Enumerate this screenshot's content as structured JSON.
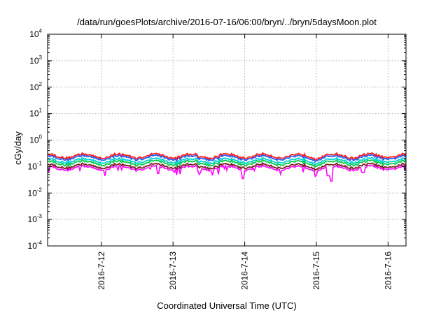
{
  "chart_data": {
    "type": "line",
    "title": "/data/run/goesPlots/archive/2016-07-16/06:00/bryn/../bryn/5daysMoon.plot",
    "xlabel": "Coordinated Universal Time (UTC)",
    "ylabel": "cGy/day",
    "yscale": "log",
    "ylim": [
      0.0001,
      10000
    ],
    "xlim": [
      "2016-07-11 06:00",
      "2016-07-16 06:00"
    ],
    "grid": true,
    "x_ticks": [
      "2016-7-12",
      "2016-7-13",
      "2016-7-14",
      "2016-7-15",
      "2016-7-16"
    ],
    "y_ticks": [
      {
        "base": "10",
        "exp": "-4",
        "value": 0.0001
      },
      {
        "base": "10",
        "exp": "-3",
        "value": 0.001
      },
      {
        "base": "10",
        "exp": "-2",
        "value": 0.01
      },
      {
        "base": "10",
        "exp": "-1",
        "value": 0.1
      },
      {
        "base": "10",
        "exp": "0",
        "value": 1
      },
      {
        "base": "10",
        "exp": "1",
        "value": 10
      },
      {
        "base": "10",
        "exp": "2",
        "value": 100
      },
      {
        "base": "10",
        "exp": "3",
        "value": 1000
      },
      {
        "base": "10",
        "exp": "4",
        "value": 10000
      }
    ],
    "series": [
      {
        "color": "#ff00ff",
        "level": 0.105,
        "dips": [
          [
            1.54,
            0.055
          ],
          [
            2.72,
            0.035
          ],
          [
            3.95,
            0.028
          ],
          [
            3.92,
            0.045
          ],
          [
            4.4,
            0.06
          ]
        ]
      },
      {
        "color": "#7a1f1f",
        "level": 0.125
      },
      {
        "color": "#00cc44",
        "level": 0.165
      },
      {
        "color": "#00d0d0",
        "level": 0.2
      },
      {
        "color": "#1f5fff",
        "level": 0.26
      },
      {
        "color": "#ff2020",
        "level": 0.3
      }
    ]
  }
}
